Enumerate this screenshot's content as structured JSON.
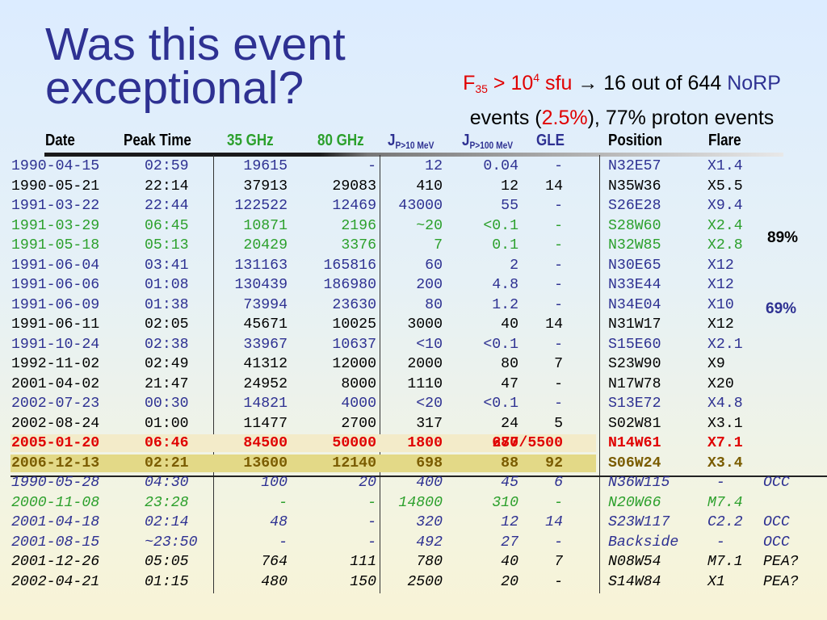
{
  "title_line1": "Was this event",
  "title_line2": "exceptional?",
  "subtitle": {
    "f": "F",
    "f_sub": "35",
    "gt": " > 10",
    "exp": "4",
    "sfu": " sfu",
    "arrow": " → ",
    "mid": "16 out of 644 ",
    "norp": "NoRP",
    "events_open": "events (",
    "pct": "2.5%",
    "events_close": "), 77% proton events"
  },
  "headers": {
    "date": "Date",
    "peak_time": "Peak Time",
    "ghz35": "35 GHz",
    "ghz80": "80 GHz",
    "j10": "J",
    "j10_sub": "P>10 MeV",
    "j100": "J",
    "j100_sub": "P>100 MeV",
    "gle": "GLE",
    "position": "Position",
    "flare": "Flare"
  },
  "colors": {
    "blue": "#2e3192",
    "black": "#000000",
    "green": "#2ca02c",
    "red": "#e00000",
    "olive": "#7a5c00",
    "green_header": "#2ca02c",
    "blue_header": "#2e3192"
  },
  "rows": [
    {
      "date": "1990-04-15",
      "time": "02:59",
      "ghz35": "19615",
      "ghz80": "-",
      "j10": "12",
      "j100": "0.04",
      "gle": "-",
      "pos": "N32E57",
      "flare": "X1.4",
      "note": "",
      "color": "blue"
    },
    {
      "date": "1990-05-21",
      "time": "22:14",
      "ghz35": "37913",
      "ghz80": "29083",
      "j10": "410",
      "j100": "12",
      "gle": "14",
      "pos": "N35W36",
      "flare": "X5.5",
      "note": "",
      "color": "black"
    },
    {
      "date": "1991-03-22",
      "time": "22:44",
      "ghz35": "122522",
      "ghz80": "12469",
      "j10": "43000",
      "j100": "55",
      "gle": "-",
      "pos": "S26E28",
      "flare": "X9.4",
      "note": "",
      "color": "blue"
    },
    {
      "date": "1991-03-29",
      "time": "06:45",
      "ghz35": "10871",
      "ghz80": "2196",
      "j10": "~20",
      "j100": "<0.1",
      "gle": "-",
      "pos": "S28W60",
      "flare": "X2.4",
      "note": "",
      "color": "green"
    },
    {
      "date": "1991-05-18",
      "time": "05:13",
      "ghz35": "20429",
      "ghz80": "3376",
      "j10": "7",
      "j100": "0.1",
      "gle": "-",
      "pos": "N32W85",
      "flare": "X2.8",
      "note": "",
      "color": "green"
    },
    {
      "date": "1991-06-04",
      "time": "03:41",
      "ghz35": "131163",
      "ghz80": "165816",
      "j10": "60",
      "j100": "2",
      "gle": "-",
      "pos": "N30E65",
      "flare": "X12",
      "note": "",
      "color": "blue"
    },
    {
      "date": "1991-06-06",
      "time": "01:08",
      "ghz35": "130439",
      "ghz80": "186980",
      "j10": "200",
      "j100": "4.8",
      "gle": "-",
      "pos": "N33E44",
      "flare": "X12",
      "note": "",
      "color": "blue"
    },
    {
      "date": "1991-06-09",
      "time": "01:38",
      "ghz35": "73994",
      "ghz80": "23630",
      "j10": "80",
      "j100": "1.2",
      "gle": "-",
      "pos": "N34E04",
      "flare": "X10",
      "note": "",
      "color": "blue"
    },
    {
      "date": "1991-06-11",
      "time": "02:05",
      "ghz35": "45671",
      "ghz80": "10025",
      "j10": "3000",
      "j100": "40",
      "gle": "14",
      "pos": "N31W17",
      "flare": "X12",
      "note": "",
      "color": "black"
    },
    {
      "date": "1991-10-24",
      "time": "02:38",
      "ghz35": "33967",
      "ghz80": "10637",
      "j10": "<10",
      "j100": "<0.1",
      "gle": "-",
      "pos": "S15E60",
      "flare": "X2.1",
      "note": "",
      "color": "blue"
    },
    {
      "date": "1992-11-02",
      "time": "02:49",
      "ghz35": "41312",
      "ghz80": "12000",
      "j10": "2000",
      "j100": "80",
      "gle": "7",
      "pos": "S23W90",
      "flare": "X9",
      "note": "",
      "color": "black"
    },
    {
      "date": "2001-04-02",
      "time": "21:47",
      "ghz35": "24952",
      "ghz80": "8000",
      "j10": "1110",
      "j100": "47",
      "gle": "-",
      "pos": "N17W78",
      "flare": "X20",
      "note": "",
      "color": "black"
    },
    {
      "date": "2002-07-23",
      "time": "00:30",
      "ghz35": "14821",
      "ghz80": "4000",
      "j10": "<20",
      "j100": "<0.1",
      "gle": "-",
      "pos": "S13E72",
      "flare": "X4.8",
      "note": "",
      "color": "blue"
    },
    {
      "date": "2002-08-24",
      "time": "01:00",
      "ghz35": "11477",
      "ghz80": "2700",
      "j10": "317",
      "j100": "24",
      "gle": "5",
      "pos": "S02W81",
      "flare": "X3.1",
      "note": "",
      "color": "black"
    },
    {
      "date": "2005-01-20",
      "time": "06:46",
      "ghz35": "84500",
      "ghz80": "50000",
      "j10": "1800",
      "j100": "680",
      "gle": "277/5500",
      "pos": "N14W61",
      "flare": "X7.1",
      "note": "",
      "color": "red",
      "style": "bold",
      "hl": "#f3ebc9"
    },
    {
      "date": "2006-12-13",
      "time": "02:21",
      "ghz35": "13600",
      "ghz80": "12140",
      "j10": "698",
      "j100": "88",
      "gle": "92",
      "pos": "S06W24",
      "flare": "X3.4",
      "note": "",
      "color": "olive",
      "style": "bold",
      "hl": "#e3d987"
    },
    {
      "date": "1990-05-28",
      "time": "04:30",
      "ghz35": "100",
      "ghz80": "20",
      "j10": "400",
      "j100": "45",
      "gle": "6",
      "pos": "N36W115",
      "flare": " -",
      "note": "OCC",
      "color": "blue",
      "style": "italic"
    },
    {
      "date": "2000-11-08",
      "time": "23:28",
      "ghz35": "-",
      "ghz80": "-",
      "j10": "14800",
      "j100": "310",
      "gle": "-",
      "pos": "N20W66",
      "flare": "M7.4",
      "note": "",
      "color": "green",
      "style": "italic"
    },
    {
      "date": "2001-04-18",
      "time": "02:14",
      "ghz35": "48",
      "ghz80": "-",
      "j10": "320",
      "j100": "12",
      "gle": "14",
      "pos": "S23W117",
      "flare": "C2.2",
      "note": "OCC",
      "color": "blue",
      "style": "italic"
    },
    {
      "date": "2001-08-15",
      "time": "~23:50",
      "ghz35": "-",
      "ghz80": "-",
      "j10": "492",
      "j100": "27",
      "gle": "-",
      "pos": "Backside",
      "flare": " -",
      "note": "OCC",
      "color": "blue",
      "style": "italic"
    },
    {
      "date": "2001-12-26",
      "time": "05:05",
      "ghz35": "764",
      "ghz80": "111",
      "j10": "780",
      "j100": "40",
      "gle": "7",
      "pos": "N08W54",
      "flare": "M7.1",
      "note": "PEA?",
      "color": "black",
      "style": "italic"
    },
    {
      "date": "2002-04-21",
      "time": "01:15",
      "ghz35": "480",
      "ghz80": "150",
      "j10": "2500",
      "j100": "20",
      "gle": "-",
      "pos": "S14W84",
      "flare": "X1",
      "note": "PEA?",
      "color": "black",
      "style": "italic"
    }
  ],
  "annotations": {
    "pct89": "89%",
    "pct69": "69%"
  }
}
